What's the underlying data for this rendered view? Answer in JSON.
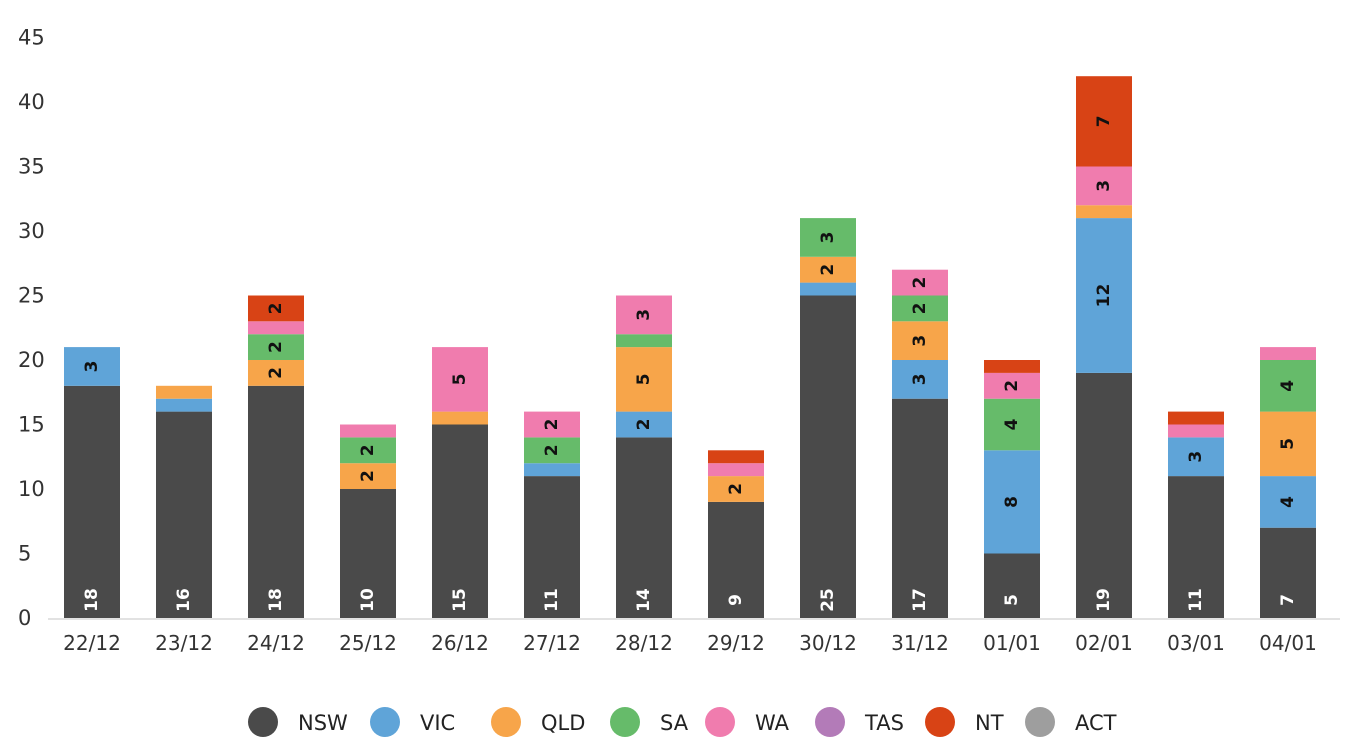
{
  "chart_data": {
    "type": "bar",
    "stacked": true,
    "categories": [
      "22/12",
      "23/12",
      "24/12",
      "25/12",
      "26/12",
      "27/12",
      "28/12",
      "29/12",
      "30/12",
      "31/12",
      "01/01",
      "02/01",
      "03/01",
      "04/01"
    ],
    "series": [
      {
        "name": "NSW",
        "color": "#4a4a4a",
        "values": [
          18,
          16,
          18,
          10,
          15,
          11,
          14,
          9,
          25,
          17,
          5,
          19,
          11,
          7
        ]
      },
      {
        "name": "VIC",
        "color": "#5fa4d8",
        "values": [
          3,
          1,
          0,
          0,
          0,
          1,
          2,
          0,
          1,
          3,
          8,
          12,
          3,
          4
        ]
      },
      {
        "name": "QLD",
        "color": "#f7a54a",
        "values": [
          0,
          1,
          2,
          2,
          1,
          0,
          5,
          2,
          2,
          3,
          0,
          1,
          0,
          5
        ]
      },
      {
        "name": "SA",
        "color": "#66bb6a",
        "values": [
          0,
          0,
          2,
          2,
          0,
          2,
          1,
          0,
          3,
          2,
          4,
          0,
          0,
          4
        ]
      },
      {
        "name": "WA",
        "color": "#f07cae",
        "values": [
          0,
          0,
          1,
          1,
          5,
          2,
          3,
          1,
          0,
          2,
          2,
          3,
          1,
          1
        ]
      },
      {
        "name": "TAS",
        "color": "#b37bb8",
        "values": [
          0,
          0,
          0,
          0,
          0,
          0,
          0,
          0,
          0,
          0,
          0,
          0,
          0,
          0
        ]
      },
      {
        "name": "NT",
        "color": "#d84315",
        "values": [
          0,
          0,
          2,
          0,
          0,
          0,
          0,
          1,
          0,
          0,
          1,
          7,
          1,
          0
        ]
      },
      {
        "name": "ACT",
        "color": "#9e9e9e",
        "values": [
          0,
          0,
          0,
          0,
          0,
          0,
          0,
          0,
          0,
          0,
          0,
          0,
          0,
          0
        ]
      }
    ],
    "labels_shown": {
      "NSW": [
        18,
        16,
        18,
        10,
        15,
        11,
        14,
        9,
        25,
        17,
        5,
        19,
        11,
        7
      ],
      "VIC": [
        3,
        null,
        null,
        null,
        null,
        null,
        2,
        null,
        null,
        3,
        8,
        12,
        3,
        4
      ],
      "QLD": [
        null,
        null,
        2,
        2,
        null,
        null,
        5,
        2,
        2,
        3,
        null,
        null,
        null,
        5
      ],
      "SA": [
        null,
        null,
        2,
        2,
        null,
        2,
        null,
        null,
        3,
        2,
        4,
        null,
        null,
        4
      ],
      "WA": [
        null,
        null,
        null,
        null,
        5,
        2,
        3,
        null,
        null,
        2,
        2,
        3,
        null,
        null
      ],
      "NT": [
        null,
        null,
        2,
        null,
        null,
        null,
        null,
        null,
        null,
        null,
        null,
        7,
        null,
        null
      ]
    },
    "yticks": [
      "0",
      "5",
      "10",
      "15",
      "20",
      "25",
      "30",
      "35",
      "40",
      "45"
    ],
    "ylim": [
      0,
      45
    ],
    "legend_position": "bottom",
    "grid": false
  }
}
